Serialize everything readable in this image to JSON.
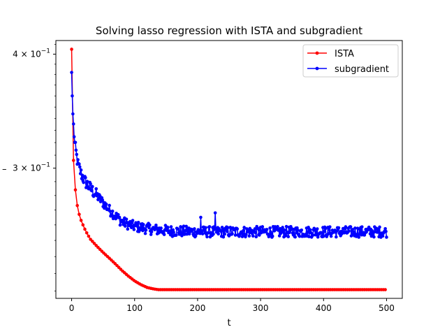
{
  "chart_data": {
    "type": "line",
    "title": "Solving lasso regression with ISTA and subgradient",
    "xlabel": "t",
    "ylabel": "",
    "ylabel_glyph": "–",
    "xlim": [
      -25,
      525
    ],
    "ylim": [
      0.216,
      0.414
    ],
    "yscale": "log",
    "grid": false,
    "legend_position": "top-right",
    "x_ticks": [
      {
        "value": 0,
        "label": "0"
      },
      {
        "value": 100,
        "label": "100"
      },
      {
        "value": 200,
        "label": "200"
      },
      {
        "value": 300,
        "label": "300"
      },
      {
        "value": 400,
        "label": "400"
      },
      {
        "value": 500,
        "label": "500"
      }
    ],
    "y_ticks": [
      {
        "value": 0.3,
        "mantissa": "3",
        "times": "×",
        "base": "10",
        "exponent": "−1"
      },
      {
        "value": 0.4,
        "mantissa": "4",
        "times": "×",
        "base": "10",
        "exponent": "−1"
      }
    ],
    "series": [
      {
        "name": "ISTA",
        "color": "#ff0000",
        "marker": "circle",
        "key_points": [
          [
            0,
            0.405
          ],
          [
            1,
            0.338
          ],
          [
            2,
            0.316
          ],
          [
            3,
            0.306
          ],
          [
            4,
            0.296
          ],
          [
            5,
            0.289
          ],
          [
            6,
            0.284
          ],
          [
            7,
            0.279
          ],
          [
            8,
            0.275
          ],
          [
            10,
            0.271
          ],
          [
            12,
            0.267
          ],
          [
            15,
            0.263
          ],
          [
            20,
            0.258
          ],
          [
            25,
            0.254
          ],
          [
            30,
            0.2507
          ],
          [
            40,
            0.2464
          ],
          [
            50,
            0.2425
          ],
          [
            60,
            0.239
          ],
          [
            70,
            0.2354
          ],
          [
            80,
            0.2317
          ],
          [
            90,
            0.2285
          ],
          [
            100,
            0.2257
          ],
          [
            110,
            0.2236
          ],
          [
            120,
            0.222
          ],
          [
            130,
            0.2212
          ],
          [
            138,
            0.2208
          ],
          [
            500,
            0.2208
          ]
        ]
      },
      {
        "name": "subgradient",
        "color": "#0000ff",
        "marker": "circle",
        "key_points": [
          [
            0,
            0.382
          ],
          [
            1,
            0.36
          ],
          [
            2,
            0.344
          ],
          [
            3,
            0.334
          ],
          [
            5,
            0.319
          ],
          [
            8,
            0.309
          ],
          [
            10,
            0.303
          ],
          [
            15,
            0.296
          ],
          [
            20,
            0.291
          ],
          [
            30,
            0.285
          ],
          [
            40,
            0.28
          ],
          [
            50,
            0.275
          ],
          [
            60,
            0.27
          ],
          [
            70,
            0.266
          ],
          [
            80,
            0.262
          ],
          [
            100,
            0.259
          ],
          [
            130,
            0.257
          ],
          [
            160,
            0.256
          ],
          [
            200,
            0.2555
          ],
          [
            300,
            0.2555
          ],
          [
            400,
            0.2555
          ],
          [
            500,
            0.2555
          ]
        ],
        "noise_amplitude": 0.0035,
        "spikes": [
          [
            228,
            0.268
          ],
          [
            205,
            0.265
          ]
        ]
      }
    ]
  }
}
